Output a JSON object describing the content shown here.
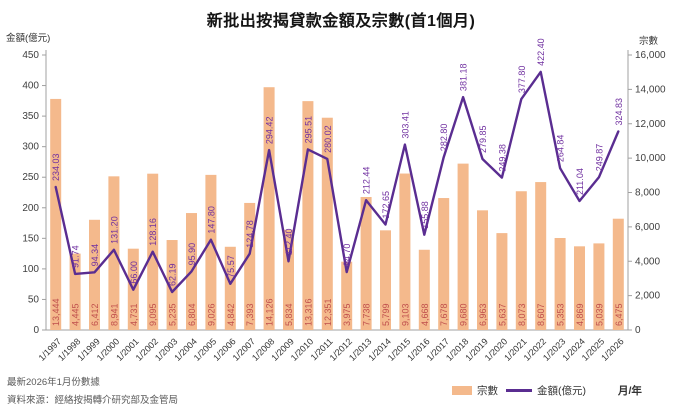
{
  "title": "新批出按揭貸款金額及宗數(首1個月)",
  "left_axis_unit": "金額(億元)",
  "right_axis_unit": "宗數",
  "legend": {
    "bar_label": "宗數",
    "line_label": "金額(億元)",
    "x_axis_title": "月/年"
  },
  "footer": {
    "line1": "最新2026年1月份數據",
    "line2": "資料來源：經絡按揭轉介研究部及金管局"
  },
  "colors": {
    "bar": "#f4b98c",
    "bar_label": "#c0504d",
    "line": "#5a2d91",
    "line_label": "#7030a0",
    "axis": "#a0a0a0",
    "tick_text": "#404040",
    "title": "#141414"
  },
  "chart_data": {
    "type": "combo",
    "title": "新批出按揭貸款金額及宗數(首1個月)",
    "xlabel": "月/年",
    "grid": false,
    "legend_position": "bottom",
    "categories": [
      "1/1997",
      "1/1998",
      "1/1999",
      "1/2000",
      "1/2001",
      "1/2002",
      "1/2003",
      "1/2004",
      "1/2005",
      "1/2006",
      "1/2007",
      "1/2008",
      "1/2009",
      "1/2010",
      "1/2011",
      "1/2012",
      "1/2013",
      "1/2014",
      "1/2015",
      "1/2016",
      "1/2017",
      "1/2018",
      "1/2019",
      "1/2020",
      "1/2021",
      "1/2022",
      "1/2023",
      "1/2024",
      "1/2025",
      "1/2026"
    ],
    "series": [
      {
        "name": "宗數",
        "type": "bar",
        "axis": "right",
        "values": [
          13444,
          4445,
          6412,
          8941,
          4731,
          9095,
          5235,
          6804,
          9026,
          4842,
          7393,
          14126,
          5834,
          13316,
          12351,
          3975,
          7738,
          5799,
          9103,
          4668,
          7678,
          9680,
          6963,
          5637,
          8073,
          8607,
          5353,
          4869,
          5039,
          6475
        ]
      },
      {
        "name": "金額(億元)",
        "type": "line",
        "axis": "left",
        "values": [
          234.03,
          91.74,
          94.34,
          131.2,
          66.0,
          128.16,
          62.19,
          95.9,
          147.8,
          75.57,
          124.78,
          294.42,
          112.4,
          295.51,
          280.02,
          94.7,
          212.44,
          172.65,
          303.41,
          155.88,
          282.8,
          381.18,
          279.85,
          249.38,
          377.8,
          422.4,
          264.84,
          211.04,
          249.87,
          324.83
        ]
      }
    ],
    "left_axis": {
      "label": "金額(億元)",
      "min": 0,
      "max": 450,
      "step": 50
    },
    "right_axis": {
      "label": "宗數",
      "min": 0,
      "max": 16000,
      "step": 2000
    }
  }
}
